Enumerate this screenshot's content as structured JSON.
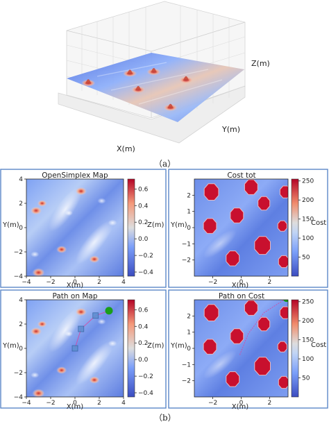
{
  "figure": {
    "caption_a": "（a）",
    "caption_b": "（b）"
  },
  "colors": {
    "panel_border": "#5b87c7",
    "coolwarm_low": "#3b4cc0",
    "coolwarm_mid": "#dddddd",
    "coolwarm_high": "#b40426",
    "obstacle": "#c8102e",
    "path_marker": "#1a9e1a",
    "waypoint": "#5d8fd1",
    "path_line": "#e0409a"
  },
  "chart_data": [
    {
      "id": "a",
      "type": "surface3d",
      "title": "",
      "xlabel": "X(m)",
      "ylabel": "Y(m)",
      "zlabel": "Z(m)",
      "colormap": "coolwarm",
      "bumps": [
        [
          -2.8,
          -3.4
        ],
        [
          -0.4,
          -1.4
        ],
        [
          -2.2,
          0.6
        ],
        [
          0.4,
          3.0
        ],
        [
          2.4,
          -2.2
        ],
        [
          -1.5,
          2.3
        ]
      ]
    },
    {
      "id": "b1",
      "type": "heatmap",
      "title": "OpenSimplex Map",
      "xlabel": "X(m)",
      "ylabel": "Y(m)",
      "xlim": [
        -4,
        4
      ],
      "ylim": [
        -4,
        4
      ],
      "xticks": [
        "−4",
        "−2",
        "0",
        "2",
        "4"
      ],
      "yticks": [
        "4",
        "2",
        "0",
        "−2",
        "−4"
      ],
      "colormap": "coolwarm",
      "colorbar": {
        "label": "Z(m)",
        "range": [
          -0.45,
          0.72
        ],
        "ticks": [
          "0.6",
          "0.4",
          "0.2",
          "0.0",
          "−0.2",
          "−0.4"
        ]
      },
      "features": [
        {
          "x": 0.5,
          "y": 3.0,
          "z": 0.6
        },
        {
          "x": -3.2,
          "y": 1.4,
          "z": 0.6
        },
        {
          "x": -2.7,
          "y": 2.0,
          "z": 0.4
        },
        {
          "x": -3.0,
          "y": -3.7,
          "z": 0.7
        },
        {
          "x": 1.6,
          "y": -2.6,
          "z": 0.5
        },
        {
          "x": -1.1,
          "y": -1.8,
          "z": 0.5
        },
        {
          "x": 3.1,
          "y": 0.4,
          "z": 0.35
        },
        {
          "x": 2.2,
          "y": 2.2,
          "z": 0.3
        },
        {
          "x": -0.5,
          "y": 1.2,
          "z": 0.25
        },
        {
          "x": -3.3,
          "y": -2.2,
          "z": 0.3
        }
      ]
    },
    {
      "id": "b2",
      "type": "heatmap",
      "title": "Cost tot",
      "xlabel": "X(m)",
      "ylabel": "Y(m)",
      "xticks": [
        "−2",
        "0",
        "2"
      ],
      "yticks": [
        "2",
        "1",
        "0",
        "−1",
        "−2"
      ],
      "colorbar": {
        "label": "Cost",
        "range": [
          0,
          255
        ],
        "ticks": [
          "250",
          "200",
          "150",
          "100",
          "50"
        ]
      },
      "obstacles": [
        {
          "x": -2.1,
          "y": 2.2,
          "r": 0.55
        },
        {
          "x": 0.7,
          "y": 2.5,
          "r": 0.5
        },
        {
          "x": 3.1,
          "y": 2.2,
          "r": 0.4
        },
        {
          "x": -2.2,
          "y": 0.1,
          "r": 0.5
        },
        {
          "x": -0.3,
          "y": 0.75,
          "r": 0.5
        },
        {
          "x": 1.6,
          "y": 1.5,
          "r": 0.45
        },
        {
          "x": 2.9,
          "y": 0.1,
          "r": 0.35
        },
        {
          "x": -0.6,
          "y": -1.9,
          "r": 0.5
        },
        {
          "x": 1.5,
          "y": -1.1,
          "r": 0.6
        },
        {
          "x": 3.0,
          "y": -2.1,
          "r": 0.4
        }
      ]
    },
    {
      "id": "b3",
      "type": "heatmap",
      "title": "Path on Map",
      "xlabel": "X(m)",
      "ylabel": "Y(m)",
      "xticks": [
        "−4",
        "−2",
        "0",
        "2",
        "4"
      ],
      "yticks": [
        "4",
        "2",
        "0",
        "−2",
        "−4"
      ],
      "colorbar": {
        "label": "Z(m)",
        "range": [
          -0.45,
          0.72
        ],
        "ticks": [
          "0.6",
          "0.4",
          "0.2",
          "0.0",
          "−0.2",
          "−0.4"
        ]
      },
      "path": [
        [
          0.0,
          0.0
        ],
        [
          0.5,
          1.6
        ],
        [
          1.7,
          2.7
        ],
        [
          2.8,
          3.1
        ]
      ],
      "start": [
        0.0,
        0.0
      ],
      "goal": [
        2.8,
        3.1
      ]
    },
    {
      "id": "b4",
      "type": "heatmap",
      "title": "Path on Cost",
      "xlabel": "X(m)",
      "ylabel": "Y(m)",
      "xticks": [
        "−2",
        "0",
        "2"
      ],
      "yticks": [
        "2",
        "1",
        "0",
        "−1",
        "−2"
      ],
      "colorbar": {
        "label": "Cost",
        "range": [
          0,
          255
        ],
        "ticks": [
          "250",
          "200",
          "150",
          "100",
          "50"
        ]
      },
      "path": [
        [
          -0.1,
          -0.4
        ],
        [
          0.5,
          0.9
        ],
        [
          1.6,
          2.2
        ],
        [
          3.2,
          3.1
        ]
      ],
      "goal": [
        3.2,
        3.1
      ]
    }
  ]
}
